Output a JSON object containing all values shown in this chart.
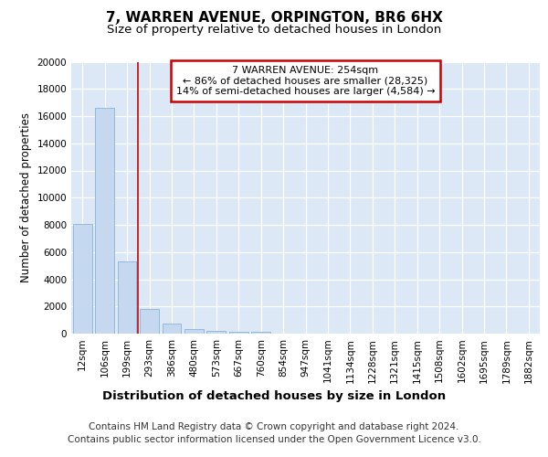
{
  "title_line1": "7, WARREN AVENUE, ORPINGTON, BR6 6HX",
  "title_line2": "Size of property relative to detached houses in London",
  "xlabel": "Distribution of detached houses by size in London",
  "ylabel": "Number of detached properties",
  "categories": [
    "12sqm",
    "106sqm",
    "199sqm",
    "293sqm",
    "386sqm",
    "480sqm",
    "573sqm",
    "667sqm",
    "760sqm",
    "854sqm",
    "947sqm",
    "1041sqm",
    "1134sqm",
    "1228sqm",
    "1321sqm",
    "1415sqm",
    "1508sqm",
    "1602sqm",
    "1695sqm",
    "1789sqm",
    "1882sqm"
  ],
  "values": [
    8100,
    16600,
    5300,
    1800,
    750,
    350,
    230,
    150,
    120,
    0,
    0,
    0,
    0,
    0,
    0,
    0,
    0,
    0,
    0,
    0,
    0
  ],
  "bar_color": "#c5d8f0",
  "bar_edge_color": "#8ab4d8",
  "red_line_x": 2.5,
  "annotation_title": "7 WARREN AVENUE: 254sqm",
  "annotation_line1": "← 86% of detached houses are smaller (28,325)",
  "annotation_line2": "14% of semi-detached houses are larger (4,584) →",
  "annotation_box_facecolor": "#ffffff",
  "annotation_box_edgecolor": "#cc0000",
  "ylim": [
    0,
    20000
  ],
  "yticks": [
    0,
    2000,
    4000,
    6000,
    8000,
    10000,
    12000,
    14000,
    16000,
    18000,
    20000
  ],
  "fig_background_color": "#ffffff",
  "plot_background_color": "#dce8f5",
  "grid_color": "#ffffff",
  "title_fontsize": 11,
  "subtitle_fontsize": 9.5,
  "ylabel_fontsize": 8.5,
  "xlabel_fontsize": 9.5,
  "tick_fontsize": 7.5,
  "annot_fontsize": 8,
  "footer_fontsize": 7.5,
  "footer_line1": "Contains HM Land Registry data © Crown copyright and database right 2024.",
  "footer_line2": "Contains public sector information licensed under the Open Government Licence v3.0."
}
